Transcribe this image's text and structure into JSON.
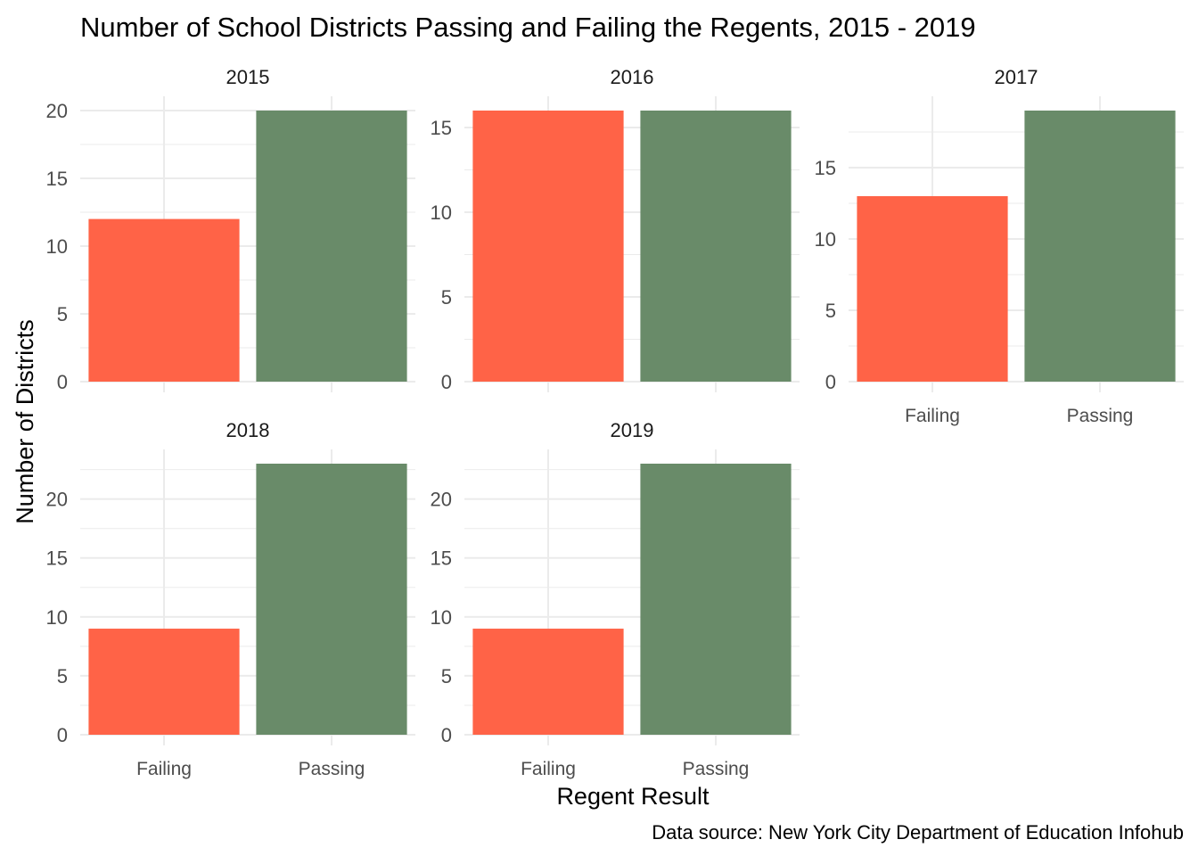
{
  "chart_data": {
    "type": "bar",
    "title": "Number of School Districts Passing and Failing the Regents, 2015 - 2019",
    "xlabel": "Regent Result",
    "ylabel": "Number of Districts",
    "caption": "Data source: New York City Department of Education Infohub",
    "categories": [
      "Failing",
      "Passing"
    ],
    "colors": {
      "Failing": "#FF6347",
      "Passing": "#698B69"
    },
    "grid": true,
    "legend": "none",
    "panels": [
      {
        "title": "2015",
        "values": [
          12,
          20
        ],
        "yticks": [
          0,
          5,
          10,
          15,
          20
        ],
        "ylim": [
          0,
          20
        ]
      },
      {
        "title": "2016",
        "values": [
          16,
          16
        ],
        "yticks": [
          0,
          5,
          10,
          15
        ],
        "ylim": [
          0,
          16
        ]
      },
      {
        "title": "2017",
        "values": [
          13,
          19
        ],
        "yticks": [
          0,
          5,
          10,
          15
        ],
        "ylim": [
          0,
          19
        ]
      },
      {
        "title": "2018",
        "values": [
          9,
          23
        ],
        "yticks": [
          0,
          5,
          10,
          15,
          20
        ],
        "ylim": [
          0,
          23
        ]
      },
      {
        "title": "2019",
        "values": [
          9,
          23
        ],
        "yticks": [
          0,
          5,
          10,
          15,
          20
        ],
        "ylim": [
          0,
          23
        ]
      }
    ]
  }
}
